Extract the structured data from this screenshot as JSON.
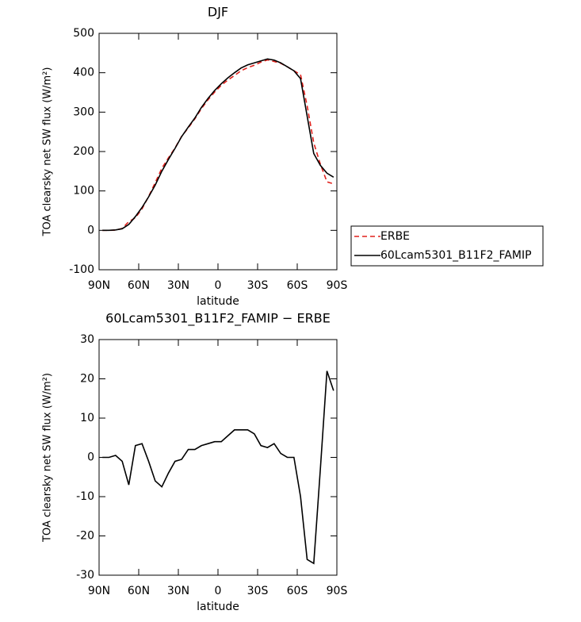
{
  "chart_data": [
    {
      "type": "line",
      "title": "DJF",
      "x_label": "latitude",
      "y_label": "TOA clearsky net SW flux (W/m²)",
      "x": [
        87.5,
        82.5,
        77.5,
        72.5,
        67.5,
        62.5,
        57.5,
        52.5,
        47.5,
        42.5,
        37.5,
        32.5,
        27.5,
        22.5,
        17.5,
        12.5,
        7.5,
        2.5,
        -2.5,
        -7.5,
        -12.5,
        -17.5,
        -22.5,
        -27.5,
        -32.5,
        -37.5,
        -42.5,
        -47.5,
        -52.5,
        -57.5,
        -62.5,
        -67.5,
        -72.5,
        -77.5,
        -82.5,
        -87.5
      ],
      "series": [
        {
          "name": "ERBE",
          "color": "#e0201b",
          "dash": true,
          "values": [
            0,
            0,
            0.5,
            5,
            22,
            32,
            54.5,
            86,
            121,
            157.5,
            184,
            209,
            238.5,
            260,
            283,
            309,
            331.5,
            351,
            368,
            381.5,
            393,
            405,
            413,
            419,
            427,
            432.5,
            428.5,
            424,
            415,
            405,
            395,
            316,
            222,
            168,
            123,
            118
          ]
        },
        {
          "name": "60Lcam5301_B11F2_FAMIP",
          "color": "#000000",
          "dash": false,
          "values": [
            0,
            0,
            1,
            4,
            15,
            35,
            58,
            85,
            115,
            150,
            180,
            208,
            238,
            262,
            285,
            312,
            335,
            355,
            372,
            387,
            400,
            412,
            420,
            425,
            430,
            435,
            432,
            425,
            415,
            405,
            385,
            290,
            195,
            165,
            145,
            135
          ]
        }
      ],
      "xlim": [
        90,
        -90
      ],
      "xticks": [
        {
          "value": 90,
          "label": "90N"
        },
        {
          "value": 60,
          "label": "60N"
        },
        {
          "value": 30,
          "label": "30N"
        },
        0,
        {
          "value": -30,
          "label": "30S"
        },
        {
          "value": -60,
          "label": "60S"
        },
        {
          "value": -90,
          "label": "90S"
        }
      ],
      "ylim": [
        -100,
        500
      ],
      "yticks": [
        -100,
        0,
        100,
        200,
        300,
        400,
        500
      ],
      "legend": "right"
    },
    {
      "type": "line",
      "title": "60Lcam5301_B11F2_FAMIP − ERBE",
      "x_label": "latitude",
      "y_label": "TOA clearsky net SW flux (W/m²)",
      "x": [
        87.5,
        82.5,
        77.5,
        72.5,
        67.5,
        62.5,
        57.5,
        52.5,
        47.5,
        42.5,
        37.5,
        32.5,
        27.5,
        22.5,
        17.5,
        12.5,
        7.5,
        2.5,
        -2.5,
        -7.5,
        -12.5,
        -17.5,
        -22.5,
        -27.5,
        -32.5,
        -37.5,
        -42.5,
        -47.5,
        -52.5,
        -57.5,
        -62.5,
        -67.5,
        -72.5,
        -77.5,
        -82.5,
        -87.5
      ],
      "series": [
        {
          "color": "#000000",
          "dash": false,
          "values": [
            0,
            0,
            0.5,
            -1,
            -7,
            3,
            3.5,
            -1,
            -6,
            -7.5,
            -4,
            -1,
            -0.5,
            2,
            2,
            3,
            3.5,
            4,
            4,
            5.5,
            7,
            7,
            7,
            6,
            3,
            2.5,
            3.5,
            1,
            0,
            0,
            -10,
            -26,
            -27,
            -3,
            22,
            17
          ]
        }
      ],
      "xlim": [
        90,
        -90
      ],
      "xticks": [
        {
          "value": 90,
          "label": "90N"
        },
        {
          "value": 60,
          "label": "60N"
        },
        {
          "value": 30,
          "label": "30N"
        },
        0,
        {
          "value": -30,
          "label": "30S"
        },
        {
          "value": -60,
          "label": "60S"
        },
        {
          "value": -90,
          "label": "90S"
        }
      ],
      "ylim": [
        -30,
        30
      ],
      "yticks": [
        -30,
        -20,
        -10,
        0,
        10,
        20,
        30
      ]
    }
  ]
}
